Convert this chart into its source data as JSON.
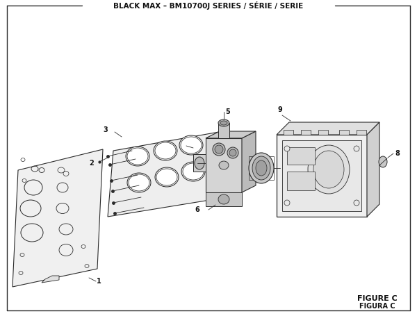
{
  "title": "BLACK MAX – BM10700J SERIES / SÉRIE / SERIE",
  "figure_label": "FIGURE C",
  "figura_label": "FIGURA C",
  "bg_color": "#ffffff",
  "line_color": "#2a2a2a",
  "light_gray": "#d8d8d8",
  "mid_gray": "#c0c0c0",
  "dark_gray": "#a0a0a0"
}
